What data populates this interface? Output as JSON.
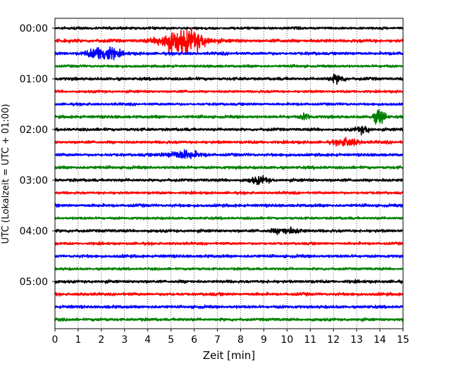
{
  "chart_data": {
    "type": "line",
    "subtype": "seismogram-helicorder",
    "xlabel": "Zeit  [min]",
    "ylabel": "UTC (Lokalzeit = UTC + 01:00)",
    "xlim": [
      0,
      15
    ],
    "x_ticks": [
      "0",
      "1",
      "2",
      "3",
      "4",
      "5",
      "6",
      "7",
      "8",
      "9",
      "10",
      "11",
      "12",
      "13",
      "14",
      "15"
    ],
    "y_tick_labels": [
      "00:00",
      "01:00",
      "02:00",
      "03:00",
      "04:00",
      "05:00"
    ],
    "trace_interval_min": 15,
    "grid": "vertical dotted at each minute",
    "color_cycle": [
      "#000000",
      "#ff0000",
      "#0000ff",
      "#008000"
    ],
    "traces": [
      {
        "start": "00:00",
        "color": "#000000",
        "noise": 0.35,
        "events": []
      },
      {
        "start": "00:15",
        "color": "#ff0000",
        "noise": 0.45,
        "events": [
          {
            "t": 5.6,
            "amp": 3.2,
            "width": 0.9
          },
          {
            "t": 4.9,
            "amp": 1.2,
            "width": 0.4
          }
        ]
      },
      {
        "start": "00:30",
        "color": "#0000ff",
        "noise": 0.4,
        "events": [
          {
            "t": 2.1,
            "amp": 2.2,
            "width": 0.6
          }
        ]
      },
      {
        "start": "00:45",
        "color": "#008000",
        "noise": 0.35,
        "events": []
      },
      {
        "start": "01:00",
        "color": "#000000",
        "noise": 0.4,
        "events": [
          {
            "t": 12.2,
            "amp": 1.1,
            "width": 0.3
          }
        ]
      },
      {
        "start": "01:15",
        "color": "#ff0000",
        "noise": 0.35,
        "events": []
      },
      {
        "start": "01:30",
        "color": "#0000ff",
        "noise": 0.35,
        "events": []
      },
      {
        "start": "01:45",
        "color": "#008000",
        "noise": 0.4,
        "events": [
          {
            "t": 14.0,
            "amp": 2.2,
            "width": 0.25
          },
          {
            "t": 10.8,
            "amp": 0.9,
            "width": 0.2
          }
        ]
      },
      {
        "start": "02:00",
        "color": "#000000",
        "noise": 0.4,
        "events": [
          {
            "t": 13.3,
            "amp": 0.9,
            "width": 0.3
          }
        ]
      },
      {
        "start": "02:15",
        "color": "#ff0000",
        "noise": 0.4,
        "events": [
          {
            "t": 12.6,
            "amp": 1.0,
            "width": 0.5
          }
        ]
      },
      {
        "start": "02:30",
        "color": "#0000ff",
        "noise": 0.4,
        "events": [
          {
            "t": 5.5,
            "amp": 1.1,
            "width": 0.7
          }
        ]
      },
      {
        "start": "02:45",
        "color": "#008000",
        "noise": 0.4,
        "events": []
      },
      {
        "start": "03:00",
        "color": "#000000",
        "noise": 0.4,
        "events": [
          {
            "t": 8.8,
            "amp": 0.9,
            "width": 0.4
          }
        ]
      },
      {
        "start": "03:15",
        "color": "#ff0000",
        "noise": 0.35,
        "events": []
      },
      {
        "start": "03:30",
        "color": "#0000ff",
        "noise": 0.4,
        "events": []
      },
      {
        "start": "03:45",
        "color": "#008000",
        "noise": 0.35,
        "events": []
      },
      {
        "start": "04:00",
        "color": "#000000",
        "noise": 0.4,
        "events": [
          {
            "t": 10.0,
            "amp": 0.8,
            "width": 0.6
          }
        ]
      },
      {
        "start": "04:15",
        "color": "#ff0000",
        "noise": 0.35,
        "events": []
      },
      {
        "start": "04:30",
        "color": "#0000ff",
        "noise": 0.4,
        "events": []
      },
      {
        "start": "04:45",
        "color": "#008000",
        "noise": 0.35,
        "events": []
      },
      {
        "start": "05:00",
        "color": "#000000",
        "noise": 0.4,
        "events": []
      },
      {
        "start": "05:15",
        "color": "#ff0000",
        "noise": 0.4,
        "events": []
      },
      {
        "start": "05:30",
        "color": "#0000ff",
        "noise": 0.4,
        "events": []
      },
      {
        "start": "05:45",
        "color": "#008000",
        "noise": 0.4,
        "events": []
      }
    ]
  }
}
